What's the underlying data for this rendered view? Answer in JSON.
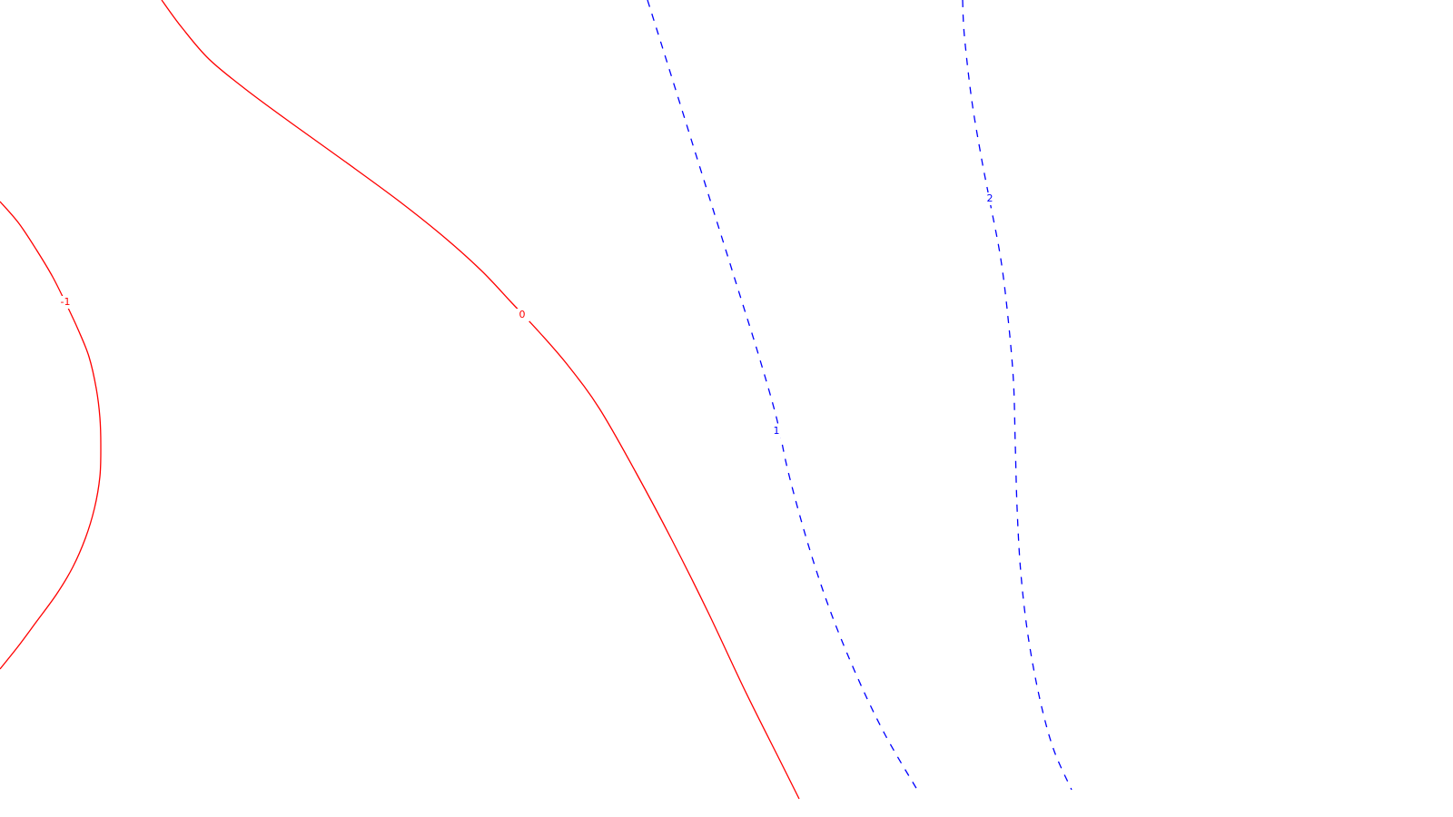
{
  "chart_data": {
    "type": "contour",
    "title": "",
    "xlabel": "",
    "ylabel": "",
    "grid": false,
    "axes_visible": false,
    "levels": [
      {
        "level": -1,
        "label": "-1",
        "color": "#ff0000",
        "style": "solid",
        "points": [
          [
            0,
            222
          ],
          [
            20,
            245
          ],
          [
            40,
            275
          ],
          [
            58,
            305
          ],
          [
            72,
            333
          ],
          [
            86,
            363
          ],
          [
            98,
            393
          ],
          [
            106,
            428
          ],
          [
            110,
            460
          ],
          [
            111,
            490
          ],
          [
            110,
            525
          ],
          [
            104,
            560
          ],
          [
            94,
            593
          ],
          [
            80,
            625
          ],
          [
            62,
            655
          ],
          [
            40,
            685
          ],
          [
            20,
            712
          ],
          [
            0,
            737
          ]
        ],
        "label_at": [
          72,
          333
        ]
      },
      {
        "level": 0,
        "label": "0",
        "color": "#ff0000",
        "style": "solid",
        "points": [
          [
            178,
            0
          ],
          [
            200,
            30
          ],
          [
            230,
            65
          ],
          [
            270,
            98
          ],
          [
            320,
            135
          ],
          [
            380,
            178
          ],
          [
            440,
            222
          ],
          [
            490,
            262
          ],
          [
            530,
            298
          ],
          [
            563,
            333
          ],
          [
            593,
            365
          ],
          [
            625,
            402
          ],
          [
            660,
            450
          ],
          [
            700,
            520
          ],
          [
            740,
            595
          ],
          [
            780,
            675
          ],
          [
            820,
            760
          ],
          [
            860,
            840
          ],
          [
            880,
            880
          ]
        ],
        "label_at": [
          575,
          347
        ]
      },
      {
        "level": 1,
        "label": "1",
        "color": "#0000ff",
        "style": "dashed",
        "points": [
          [
            713,
            0
          ],
          [
            735,
            70
          ],
          [
            760,
            150
          ],
          [
            785,
            230
          ],
          [
            810,
            310
          ],
          [
            835,
            390
          ],
          [
            855,
            460
          ],
          [
            868,
            520
          ],
          [
            890,
            600
          ],
          [
            915,
            675
          ],
          [
            945,
            748
          ],
          [
            975,
            810
          ],
          [
            1010,
            870
          ]
        ],
        "label_at": [
          855,
          475
        ]
      },
      {
        "level": 2,
        "label": "2",
        "color": "#0000ff",
        "style": "dashed",
        "points": [
          [
            1060,
            0
          ],
          [
            1062,
            40
          ],
          [
            1070,
            110
          ],
          [
            1080,
            170
          ],
          [
            1090,
            222
          ],
          [
            1102,
            285
          ],
          [
            1110,
            350
          ],
          [
            1116,
            420
          ],
          [
            1118,
            490
          ],
          [
            1120,
            560
          ],
          [
            1124,
            630
          ],
          [
            1132,
            700
          ],
          [
            1145,
            770
          ],
          [
            1160,
            825
          ],
          [
            1180,
            870
          ]
        ],
        "label_at": [
          1090,
          219
        ]
      }
    ]
  }
}
